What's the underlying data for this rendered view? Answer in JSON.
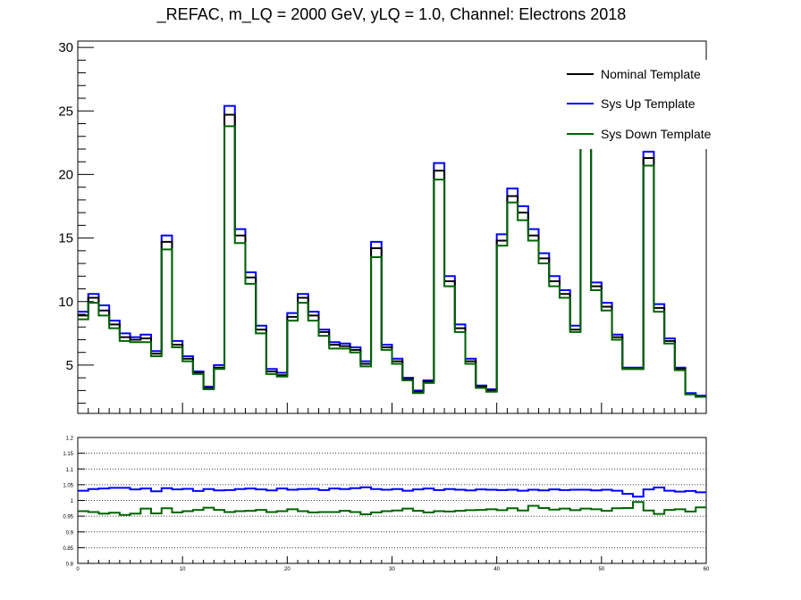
{
  "chart_data": [
    {
      "type": "line",
      "step": true,
      "title": "_REFAC, m_LQ = 2000 GeV, yLQ = 1.0, Channel: Electrons 2018",
      "ylim": [
        1.2,
        30.5
      ],
      "xlim": [
        0,
        60
      ],
      "y_ticks": [
        "5",
        "10",
        "15",
        "20",
        "25",
        "30"
      ],
      "legend": {
        "position": "top-right",
        "entries": [
          "Nominal Template",
          "Sys Up Template",
          "Sys Down Template"
        ]
      },
      "colors": {
        "nominal": "#000000",
        "up": "#0000ff",
        "down": "#006400"
      },
      "series": [
        {
          "name": "Nominal Template",
          "values": [
            8.9,
            10.3,
            9.3,
            8.2,
            7.2,
            7.0,
            7.1,
            5.9,
            14.7,
            6.6,
            5.5,
            4.4,
            3.2,
            4.8,
            24.7,
            15.2,
            11.9,
            7.8,
            4.5,
            4.2,
            8.8,
            10.3,
            8.9,
            7.6,
            6.6,
            6.5,
            6.2,
            5.1,
            14.2,
            6.4,
            5.3,
            3.9,
            2.9,
            3.7,
            20.3,
            11.6,
            7.9,
            5.3,
            3.3,
            3.0,
            14.8,
            18.3,
            17.0,
            15.2,
            13.4,
            11.6,
            10.6,
            7.8,
            27.0,
            11.2,
            9.6,
            7.2,
            4.7,
            4.7,
            21.3,
            9.5,
            6.9,
            4.7,
            2.7,
            2.5
          ]
        },
        {
          "name": "Sys Up Template",
          "values": [
            9.2,
            10.6,
            9.7,
            8.5,
            7.5,
            7.2,
            7.4,
            6.1,
            15.2,
            6.9,
            5.7,
            4.5,
            3.3,
            5.0,
            25.4,
            15.7,
            12.3,
            8.1,
            4.7,
            4.4,
            9.1,
            10.6,
            9.2,
            7.8,
            6.8,
            6.7,
            6.4,
            5.3,
            14.7,
            6.6,
            5.5,
            4.0,
            3.0,
            3.8,
            20.9,
            12.0,
            8.2,
            5.5,
            3.4,
            3.1,
            15.3,
            18.9,
            17.5,
            15.7,
            13.8,
            12.0,
            10.9,
            8.1,
            27.8,
            11.5,
            9.9,
            7.4,
            4.8,
            4.8,
            21.8,
            9.8,
            7.1,
            4.8,
            2.8,
            2.6
          ]
        },
        {
          "name": "Sys Down Template",
          "values": [
            8.6,
            9.9,
            8.9,
            7.9,
            6.9,
            6.8,
            6.8,
            5.7,
            14.1,
            6.4,
            5.3,
            4.3,
            3.1,
            4.7,
            23.8,
            14.6,
            11.4,
            7.5,
            4.3,
            4.1,
            8.5,
            9.9,
            8.5,
            7.3,
            6.3,
            6.3,
            6.0,
            4.9,
            13.5,
            6.2,
            5.1,
            3.8,
            2.8,
            3.6,
            19.6,
            11.2,
            7.6,
            5.1,
            3.2,
            2.9,
            14.4,
            17.8,
            16.4,
            14.8,
            13.0,
            11.2,
            10.3,
            7.6,
            26.0,
            10.9,
            9.3,
            7.0,
            4.7,
            4.7,
            20.7,
            9.2,
            6.7,
            4.6,
            2.7,
            2.5
          ]
        }
      ]
    },
    {
      "type": "line",
      "step": true,
      "ylim": [
        0.8,
        1.2
      ],
      "xlim": [
        0,
        60
      ],
      "grid": "horizontal dotted",
      "y_ticks": [
        "0.8",
        "0.85",
        "0.9",
        "0.95",
        "1",
        "1.05",
        "1.1",
        "1.15",
        "1.2"
      ],
      "x_ticks": [
        "0",
        "10",
        "20",
        "30",
        "40",
        "50",
        "60"
      ],
      "series": [
        {
          "name": "Sys Up Template",
          "values": [
            1.031,
            1.036,
            1.038,
            1.04,
            1.04,
            1.035,
            1.038,
            1.029,
            1.039,
            1.035,
            1.037,
            1.03,
            1.036,
            1.032,
            1.033,
            1.036,
            1.038,
            1.035,
            1.032,
            1.038,
            1.034,
            1.036,
            1.037,
            1.033,
            1.038,
            1.036,
            1.039,
            1.042,
            1.036,
            1.034,
            1.036,
            1.031,
            1.035,
            1.038,
            1.033,
            1.036,
            1.034,
            1.032,
            1.035,
            1.034,
            1.033,
            1.034,
            1.031,
            1.034,
            1.032,
            1.035,
            1.033,
            1.034,
            1.034,
            1.032,
            1.034,
            1.031,
            1.021,
            1.012,
            1.035,
            1.041,
            1.031,
            1.028,
            1.03,
            1.026
          ]
        },
        {
          "name": "Sys Down Template",
          "values": [
            0.966,
            0.963,
            0.958,
            0.961,
            0.954,
            0.958,
            0.974,
            0.959,
            0.975,
            0.962,
            0.966,
            0.97,
            0.977,
            0.97,
            0.963,
            0.966,
            0.967,
            0.97,
            0.963,
            0.966,
            0.972,
            0.966,
            0.962,
            0.963,
            0.963,
            0.967,
            0.963,
            0.956,
            0.962,
            0.966,
            0.968,
            0.974,
            0.967,
            0.962,
            0.966,
            0.965,
            0.967,
            0.969,
            0.97,
            0.972,
            0.969,
            0.975,
            0.968,
            0.983,
            0.976,
            0.971,
            0.974,
            0.969,
            0.974,
            0.972,
            0.967,
            0.975,
            0.976,
            0.995,
            0.968,
            0.957,
            0.97,
            0.972,
            0.965,
            0.978
          ]
        }
      ]
    }
  ]
}
